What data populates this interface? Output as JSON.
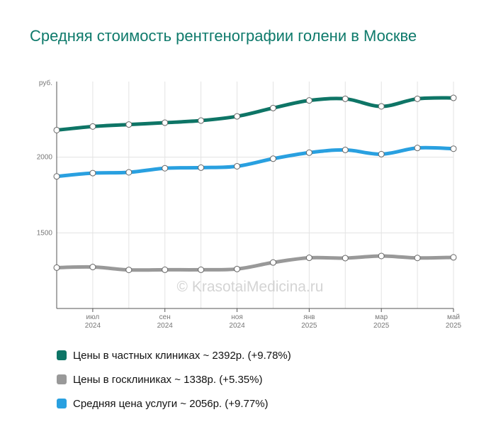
{
  "title": "Средняя стоимость рентгенографии голени в Москве",
  "watermark": "© KrasotaiMedicina.ru",
  "chart_data": {
    "type": "line",
    "y_unit_label": "руб.",
    "ylim": [
      1000,
      2500
    ],
    "y_ticks": [
      1500,
      2000
    ],
    "grid": true,
    "x": [
      "2024-06",
      "2024-07",
      "2024-08",
      "2024-09",
      "2024-10",
      "2024-11",
      "2024-12",
      "2025-01",
      "2025-02",
      "2025-03",
      "2025-04",
      "2025-05"
    ],
    "x_tick_labels": [
      {
        "index": 1,
        "month": "июл",
        "year": "2024"
      },
      {
        "index": 3,
        "month": "сен",
        "year": "2024"
      },
      {
        "index": 5,
        "month": "ноя",
        "year": "2024"
      },
      {
        "index": 7,
        "month": "янв",
        "year": "2025"
      },
      {
        "index": 9,
        "month": "мар",
        "year": "2025"
      },
      {
        "index": 11,
        "month": "май",
        "year": "2025"
      }
    ],
    "series": [
      {
        "name": "Цены в частных клиниках ~ 2392р. (+9.78%)",
        "color": "#0e7566",
        "values": [
          2179,
          2203,
          2216,
          2228,
          2242,
          2270,
          2325,
          2375,
          2386,
          2336,
          2386,
          2392
        ]
      },
      {
        "name": "Цены в госклиниках ~ 1338р. (+5.35%)",
        "color": "#999999",
        "values": [
          1270,
          1274,
          1255,
          1256,
          1256,
          1261,
          1304,
          1335,
          1333,
          1347,
          1334,
          1338
        ]
      },
      {
        "name": "Средняя цена услуги ~ 2056р. (+9.77%)",
        "color": "#29a0e0",
        "values": [
          1873,
          1895,
          1900,
          1927,
          1931,
          1940,
          1990,
          2030,
          2048,
          2020,
          2061,
          2056
        ]
      }
    ]
  }
}
